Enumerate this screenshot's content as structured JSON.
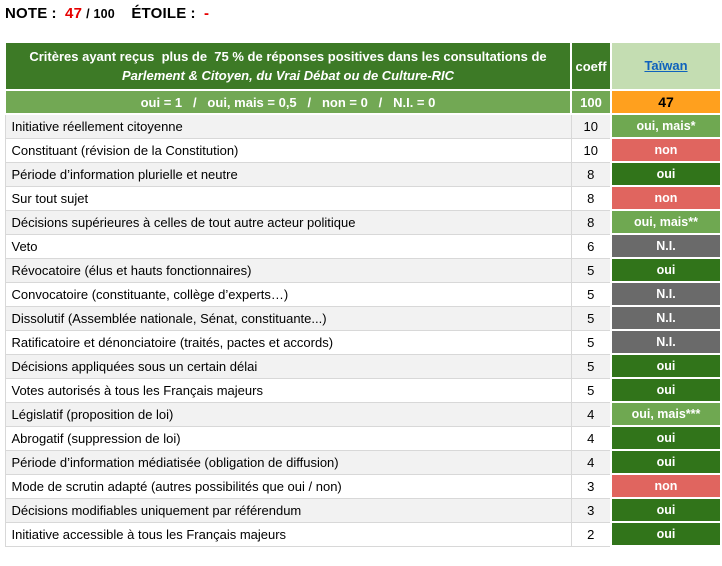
{
  "colors": {
    "header-green": "#3d7a26",
    "legend-green": "#72a854",
    "oui-dark-green": "#31741a",
    "oui-mais-green": "#6fa851",
    "non-red": "#e0655f",
    "ni-gray": "#6a6a6a",
    "score-orange": "#ffa01e",
    "country-header-bg": "#c4ddb2",
    "link-blue": "#0f62bd",
    "note-red": "#e60000",
    "row-stripe": "#f2f2f2",
    "grid-border": "#d8d8d8"
  },
  "note_bar": {
    "note_label": "NOTE",
    "note_colon": ":",
    "note_value": "47",
    "note_suffix": "/ 100",
    "etoile_label": "ÉTOILE",
    "etoile_colon": ":",
    "etoile_value": "-"
  },
  "table": {
    "header": {
      "criteria_line1": "Critères ayant reçus  plus de  75 % de réponses positives dans les consultations de",
      "criteria_line2": "Parlement & Citoyen, du Vrai Débat ou de Culture-RIC",
      "coeff_label": "coeff",
      "country_label": "Taïwan"
    },
    "score_row": {
      "legend": "oui = 1   /   oui, mais = 0,5   /   non = 0   /   N.I. = 0",
      "total_coeff": "100",
      "score": "47"
    },
    "rows": [
      {
        "label": "Initiative réellement citoyenne",
        "coeff": "10",
        "value": "oui, mais*",
        "status": "oui-mais"
      },
      {
        "label": "Constituant (révision de la Constitution)",
        "coeff": "10",
        "value": "non",
        "status": "non"
      },
      {
        "label": "Période d’information plurielle et neutre",
        "coeff": "8",
        "value": "oui",
        "status": "oui"
      },
      {
        "label": "Sur tout sujet",
        "coeff": "8",
        "value": "non",
        "status": "non"
      },
      {
        "label": "Décisions supérieures à celles de tout autre acteur politique",
        "coeff": "8",
        "value": "oui, mais**",
        "status": "oui-mais"
      },
      {
        "label": "Veto",
        "coeff": "6",
        "value": "N.I.",
        "status": "ni"
      },
      {
        "label": "Révocatoire (élus et hauts fonctionnaires)",
        "coeff": "5",
        "value": "oui",
        "status": "oui"
      },
      {
        "label": "Convocatoire (constituante, collège d’experts…)",
        "coeff": "5",
        "value": "N.I.",
        "status": "ni"
      },
      {
        "label": "Dissolutif (Assemblée nationale, Sénat, constituante...)",
        "coeff": "5",
        "value": "N.I.",
        "status": "ni"
      },
      {
        "label": "Ratificatoire et dénonciatoire (traités, pactes et accords)",
        "coeff": "5",
        "value": "N.I.",
        "status": "ni"
      },
      {
        "label": "Décisions appliquées sous un certain délai",
        "coeff": "5",
        "value": "oui",
        "status": "oui"
      },
      {
        "label": "Votes autorisés à tous les Français majeurs",
        "coeff": "5",
        "value": "oui",
        "status": "oui"
      },
      {
        "label": "Législatif (proposition de loi)",
        "coeff": "4",
        "value": "oui, mais***",
        "status": "oui-mais"
      },
      {
        "label": "Abrogatif (suppression de loi)",
        "coeff": "4",
        "value": "oui",
        "status": "oui"
      },
      {
        "label": "Période d’information médiatisée (obligation de diffusion)",
        "coeff": "4",
        "value": "oui",
        "status": "oui"
      },
      {
        "label": "Mode de scrutin adapté (autres possibilités que oui / non)",
        "coeff": "3",
        "value": "non",
        "status": "non"
      },
      {
        "label": "Décisions modifiables uniquement par référendum",
        "coeff": "3",
        "value": "oui",
        "status": "oui"
      },
      {
        "label": "Initiative accessible à tous les Français majeurs",
        "coeff": "2",
        "value": "oui",
        "status": "oui"
      }
    ]
  }
}
